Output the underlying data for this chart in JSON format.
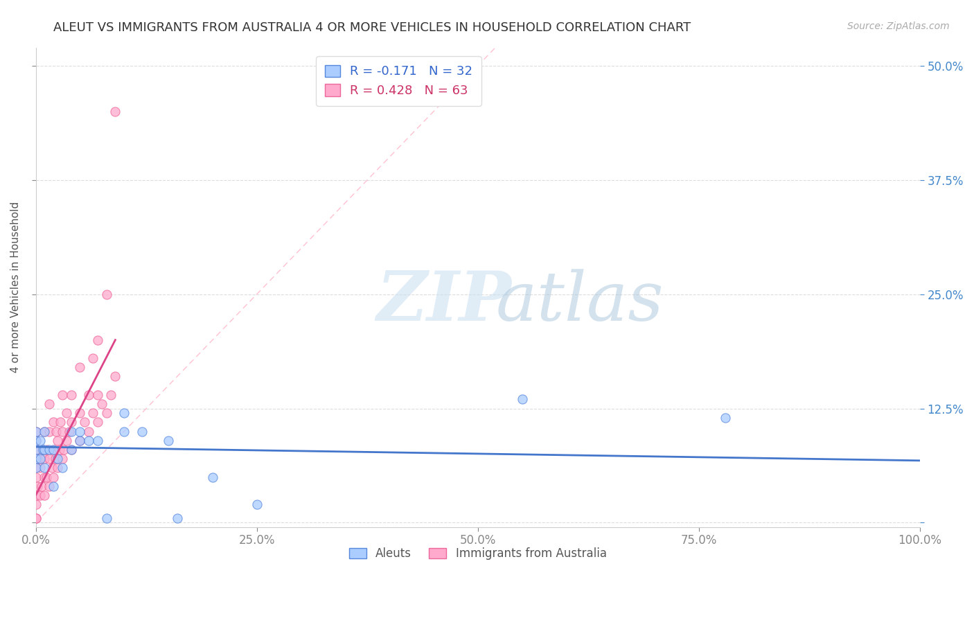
{
  "title": "ALEUT VS IMMIGRANTS FROM AUSTRALIA 4 OR MORE VEHICLES IN HOUSEHOLD CORRELATION CHART",
  "source_text": "Source: ZipAtlas.com",
  "ylabel": "4 or more Vehicles in Household",
  "xlim": [
    0.0,
    1.0
  ],
  "ylim": [
    -0.005,
    0.52
  ],
  "xticks": [
    0.0,
    0.25,
    0.5,
    0.75,
    1.0
  ],
  "xtick_labels": [
    "0.0%",
    "25.0%",
    "50.0%",
    "75.0%",
    "100.0%"
  ],
  "yticks": [
    0.0,
    0.125,
    0.25,
    0.375,
    0.5
  ],
  "ytick_labels_right": [
    "50.0%",
    "37.5%",
    "25.0%",
    "12.5%",
    ""
  ],
  "aleut_color": "#aaccff",
  "aus_color": "#ffaacc",
  "aleut_edge_color": "#5588dd",
  "aus_edge_color": "#ee6699",
  "aleut_line_color": "#4477cc",
  "aus_line_color": "#dd4488",
  "diagonal_color": "#ffbbcc",
  "grid_color": "#dddddd",
  "aleut_x": [
    0.0,
    0.0,
    0.0,
    0.0,
    0.0,
    0.005,
    0.005,
    0.008,
    0.01,
    0.01,
    0.01,
    0.015,
    0.02,
    0.02,
    0.025,
    0.03,
    0.04,
    0.04,
    0.05,
    0.05,
    0.06,
    0.07,
    0.08,
    0.1,
    0.1,
    0.12,
    0.15,
    0.16,
    0.2,
    0.25,
    0.55,
    0.78
  ],
  "aleut_y": [
    0.08,
    0.09,
    0.1,
    0.06,
    0.07,
    0.07,
    0.09,
    0.08,
    0.06,
    0.08,
    0.1,
    0.08,
    0.04,
    0.08,
    0.07,
    0.06,
    0.08,
    0.1,
    0.09,
    0.1,
    0.09,
    0.09,
    0.005,
    0.1,
    0.12,
    0.1,
    0.09,
    0.005,
    0.05,
    0.02,
    0.135,
    0.115
  ],
  "aus_x": [
    0.0,
    0.0,
    0.0,
    0.0,
    0.0,
    0.0,
    0.0,
    0.0,
    0.0,
    0.0,
    0.002,
    0.003,
    0.005,
    0.005,
    0.007,
    0.008,
    0.01,
    0.01,
    0.01,
    0.01,
    0.012,
    0.013,
    0.015,
    0.015,
    0.015,
    0.015,
    0.018,
    0.02,
    0.02,
    0.02,
    0.022,
    0.023,
    0.025,
    0.025,
    0.027,
    0.028,
    0.03,
    0.03,
    0.03,
    0.032,
    0.035,
    0.035,
    0.038,
    0.04,
    0.04,
    0.04,
    0.05,
    0.05,
    0.05,
    0.055,
    0.06,
    0.06,
    0.065,
    0.065,
    0.07,
    0.07,
    0.07,
    0.075,
    0.08,
    0.08,
    0.085,
    0.09,
    0.09
  ],
  "aus_y": [
    0.02,
    0.03,
    0.05,
    0.06,
    0.07,
    0.08,
    0.09,
    0.1,
    0.005,
    0.005,
    0.04,
    0.07,
    0.03,
    0.06,
    0.04,
    0.08,
    0.03,
    0.05,
    0.07,
    0.1,
    0.05,
    0.08,
    0.04,
    0.07,
    0.1,
    0.13,
    0.06,
    0.05,
    0.08,
    0.11,
    0.07,
    0.1,
    0.06,
    0.09,
    0.08,
    0.11,
    0.07,
    0.1,
    0.14,
    0.08,
    0.09,
    0.12,
    0.1,
    0.08,
    0.11,
    0.14,
    0.09,
    0.12,
    0.17,
    0.11,
    0.1,
    0.14,
    0.12,
    0.18,
    0.11,
    0.14,
    0.2,
    0.13,
    0.12,
    0.25,
    0.14,
    0.16,
    0.45
  ],
  "legend_items": [
    {
      "label": "R = -0.171   N = 32",
      "text_color": "#3366cc",
      "face": "#aaccff",
      "edge": "#5588dd"
    },
    {
      "label": "R = 0.428   N = 63",
      "text_color": "#cc3366",
      "face": "#ffaacc",
      "edge": "#ee6699"
    }
  ],
  "bottom_legend": [
    "Aleuts",
    "Immigrants from Australia"
  ]
}
